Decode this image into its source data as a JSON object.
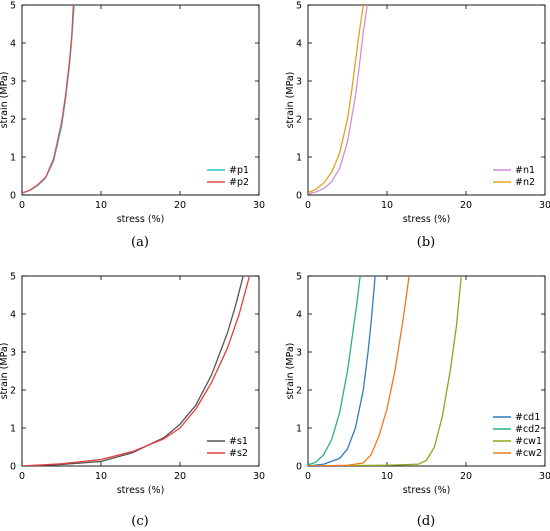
{
  "chart_data": [
    {
      "panel": "a",
      "caption": "(a)",
      "type": "line",
      "xlabel": "stress (%)",
      "ylabel": "strain (MPa)",
      "xlim": [
        0,
        30
      ],
      "ylim": [
        0,
        5
      ],
      "xticks": [
        0,
        10,
        20,
        30
      ],
      "yticks": [
        0,
        1,
        2,
        3,
        4,
        5
      ],
      "legend_position": "bottom-right",
      "series": [
        {
          "name": "#p1",
          "color": "#22c6c6",
          "points": [
            [
              0,
              0.05
            ],
            [
              1,
              0.12
            ],
            [
              2,
              0.25
            ],
            [
              3,
              0.45
            ],
            [
              4,
              0.9
            ],
            [
              5,
              1.8
            ],
            [
              5.5,
              2.5
            ],
            [
              6,
              3.4
            ],
            [
              6.3,
              4.1
            ],
            [
              6.6,
              5.0
            ]
          ]
        },
        {
          "name": "#p2",
          "color": "#e24c4c",
          "points": [
            [
              0,
              0.05
            ],
            [
              1,
              0.13
            ],
            [
              2,
              0.27
            ],
            [
              3,
              0.47
            ],
            [
              4,
              0.95
            ],
            [
              5,
              1.9
            ],
            [
              5.5,
              2.6
            ],
            [
              6,
              3.5
            ],
            [
              6.3,
              4.2
            ],
            [
              6.5,
              5.0
            ]
          ]
        }
      ]
    },
    {
      "panel": "b",
      "caption": "(b)",
      "type": "line",
      "xlabel": "stress (%)",
      "ylabel": "strain (MPa)",
      "xlim": [
        0,
        30
      ],
      "ylim": [
        0,
        5
      ],
      "xticks": [
        0,
        10,
        20,
        30
      ],
      "yticks": [
        0,
        1,
        2,
        3,
        4,
        5
      ],
      "legend_position": "bottom-right",
      "series": [
        {
          "name": "#n1",
          "color": "#cf8fd6",
          "points": [
            [
              0,
              0.03
            ],
            [
              1,
              0.08
            ],
            [
              2,
              0.17
            ],
            [
              3,
              0.35
            ],
            [
              4,
              0.7
            ],
            [
              5,
              1.4
            ],
            [
              6,
              2.6
            ],
            [
              6.5,
              3.4
            ],
            [
              7,
              4.3
            ],
            [
              7.5,
              5.0
            ]
          ]
        },
        {
          "name": "#n2",
          "color": "#e3a31f",
          "points": [
            [
              0,
              0.06
            ],
            [
              1,
              0.15
            ],
            [
              2,
              0.32
            ],
            [
              3,
              0.6
            ],
            [
              4,
              1.1
            ],
            [
              5,
              2.0
            ],
            [
              5.5,
              2.7
            ],
            [
              6,
              3.5
            ],
            [
              6.5,
              4.3
            ],
            [
              7.0,
              5.0
            ]
          ]
        }
      ]
    },
    {
      "panel": "c",
      "caption": "(c)",
      "type": "line",
      "xlabel": "stress (%)",
      "ylabel": "strain (MPa)",
      "xlim": [
        0,
        30
      ],
      "ylim": [
        0,
        5
      ],
      "xticks": [
        0,
        10,
        20,
        30
      ],
      "yticks": [
        0,
        1,
        2,
        3,
        4,
        5
      ],
      "legend_position": "bottom-right",
      "series": [
        {
          "name": "#s1",
          "color": "#555555",
          "points": [
            [
              0,
              0.0
            ],
            [
              5,
              0.04
            ],
            [
              10,
              0.12
            ],
            [
              14,
              0.35
            ],
            [
              18,
              0.75
            ],
            [
              20,
              1.1
            ],
            [
              22,
              1.6
            ],
            [
              24,
              2.4
            ],
            [
              26,
              3.5
            ],
            [
              27,
              4.2
            ],
            [
              28,
              5.0
            ]
          ]
        },
        {
          "name": "#s2",
          "color": "#e53c3c",
          "points": [
            [
              0,
              0.0
            ],
            [
              5,
              0.06
            ],
            [
              10,
              0.17
            ],
            [
              14,
              0.38
            ],
            [
              18,
              0.72
            ],
            [
              20,
              1.0
            ],
            [
              22,
              1.5
            ],
            [
              24,
              2.2
            ],
            [
              26,
              3.1
            ],
            [
              27.5,
              4.0
            ],
            [
              28.8,
              5.0
            ]
          ]
        }
      ]
    },
    {
      "panel": "d",
      "caption": "(d)",
      "type": "line",
      "xlabel": "stress (%)",
      "ylabel": "strain (MPa)",
      "xlim": [
        0,
        30
      ],
      "ylim": [
        0,
        5
      ],
      "xticks": [
        0,
        10,
        20,
        30
      ],
      "yticks": [
        0,
        1,
        2,
        3,
        4,
        5
      ],
      "legend_position": "bottom-right",
      "series": [
        {
          "name": "#cd1",
          "color": "#2f7bbf",
          "points": [
            [
              0,
              0.0
            ],
            [
              2,
              0.05
            ],
            [
              4,
              0.2
            ],
            [
              5,
              0.45
            ],
            [
              6,
              1.0
            ],
            [
              7,
              2.0
            ],
            [
              7.6,
              3.0
            ],
            [
              8,
              3.8
            ],
            [
              8.5,
              5.0
            ]
          ]
        },
        {
          "name": "#cd2",
          "color": "#2bb08a",
          "points": [
            [
              0,
              0.03
            ],
            [
              1,
              0.1
            ],
            [
              2,
              0.3
            ],
            [
              3,
              0.7
            ],
            [
              4,
              1.4
            ],
            [
              5,
              2.5
            ],
            [
              5.6,
              3.4
            ],
            [
              6.2,
              4.3
            ],
            [
              6.6,
              5.0
            ]
          ]
        },
        {
          "name": "#cw1",
          "color": "#8fa61c",
          "points": [
            [
              0,
              0.0
            ],
            [
              10,
              0.02
            ],
            [
              14,
              0.05
            ],
            [
              15,
              0.15
            ],
            [
              16,
              0.5
            ],
            [
              17,
              1.3
            ],
            [
              18,
              2.5
            ],
            [
              18.8,
              3.7
            ],
            [
              19.4,
              5.0
            ]
          ]
        },
        {
          "name": "#cw2",
          "color": "#ee7a1b",
          "points": [
            [
              0,
              0.0
            ],
            [
              5,
              0.02
            ],
            [
              7,
              0.08
            ],
            [
              8,
              0.3
            ],
            [
              9,
              0.8
            ],
            [
              10,
              1.5
            ],
            [
              11,
              2.5
            ],
            [
              12,
              3.8
            ],
            [
              12.8,
              5.0
            ]
          ]
        }
      ]
    }
  ]
}
